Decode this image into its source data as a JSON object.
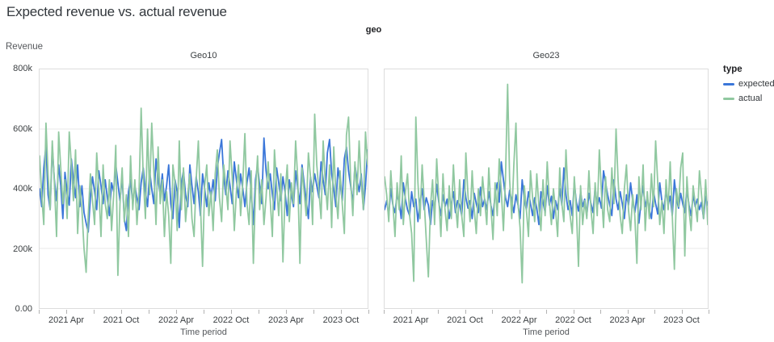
{
  "page_title": "Expected revenue vs. actual revenue",
  "facet_header": "geo",
  "y_axis": {
    "title": "Revenue",
    "ticks": [
      {
        "value": 800000,
        "label": "800k"
      },
      {
        "value": 600000,
        "label": "600k"
      },
      {
        "value": 400000,
        "label": "400k"
      },
      {
        "value": 200000,
        "label": "200k"
      },
      {
        "value": 0,
        "label": "0.00"
      }
    ]
  },
  "x_axis": {
    "title": "Time period",
    "months_span": 36,
    "minor_tick_every_months": 3,
    "labeled_ticks": [
      {
        "month": 3,
        "label": "2021 Apr"
      },
      {
        "month": 9,
        "label": "2021 Oct"
      },
      {
        "month": 15,
        "label": "2022 Apr"
      },
      {
        "month": 21,
        "label": "2022 Oct"
      },
      {
        "month": 27,
        "label": "2023 Apr"
      },
      {
        "month": 33,
        "label": "2023 Oct"
      }
    ]
  },
  "legend": {
    "title": "type",
    "items": [
      {
        "label": "expected",
        "color": "#3a76d9"
      },
      {
        "label": "actual",
        "color": "#90c8a0"
      }
    ]
  },
  "chart_data": {
    "type": "line",
    "title": "Expected revenue vs. actual revenue",
    "facet_field": "geo",
    "xlabel": "Time period",
    "ylabel": "Revenue",
    "x_range": [
      "2021-01",
      "2024-01"
    ],
    "x_interval": "weekly",
    "ylim": [
      0,
      800000
    ],
    "y_units": "values in thousands (k)",
    "grid": true,
    "legend_position": "right",
    "facets": [
      {
        "name": "Geo10",
        "series": [
          {
            "name": "expected",
            "color": "#3a76d9",
            "values_k": [
              400,
              340,
              470,
              545,
              380,
              330,
              540,
              430,
              360,
              480,
              410,
              300,
              455,
              390,
              345,
              500,
              430,
              370,
              480,
              340,
              410,
              320,
              285,
              255,
              370,
              440,
              390,
              330,
              460,
              410,
              350,
              430,
              370,
              310,
              420,
              390,
              480,
              420,
              360,
              440,
              300,
              260,
              390,
              430,
              350,
              410,
              370,
              330,
              420,
              470,
              390,
              340,
              460,
              400,
              350,
              500,
              430,
              380,
              450,
              360,
              410,
              480,
              350,
              300,
              430,
              390,
              270,
              420,
              460,
              380,
              340,
              480,
              410,
              350,
              440,
              390,
              310,
              450,
              400,
              340,
              420,
              370,
              430,
              360,
              470,
              520,
              565,
              440,
              380,
              460,
              410,
              350,
              490,
              430,
              370,
              450,
              400,
              340,
              420,
              470,
              390,
              280,
              430,
              480,
              410,
              350,
              570,
              460,
              400,
              450,
              380,
              330,
              470,
              420,
              360,
              440,
              390,
              310,
              430,
              380,
              340,
              460,
              400,
              350,
              480,
              420,
              360,
              300,
              440,
              390,
              450,
              410,
              370,
              490,
              430,
              380,
              520,
              565,
              450,
              400,
              340,
              470,
              420,
              360,
              500,
              540,
              460,
              410,
              350,
              480,
              430,
              390,
              450,
              330,
              410,
              530
            ]
          },
          {
            "name": "actual",
            "color": "#90c8a0",
            "values_k": [
              510,
              380,
              280,
              620,
              450,
              330,
              560,
              420,
              240,
              590,
              470,
              350,
              430,
              300,
              590,
              480,
              360,
              530,
              250,
              410,
              330,
              200,
              120,
              310,
              450,
              360,
              280,
              520,
              400,
              240,
              480,
              350,
              300,
              430,
              260,
              380,
              545,
              110,
              350,
              470,
              290,
              380,
              240,
              510,
              330,
              430,
              280,
              390,
              670,
              440,
              300,
              600,
              380,
              620,
              460,
              280,
              540,
              350,
              430,
              240,
              390,
              310,
              150,
              480,
              420,
              260,
              560,
              330,
              470,
              290,
              380,
              450,
              300,
              240,
              430,
              560,
              350,
              140,
              410,
              480,
              310,
              390,
              260,
              450,
              530,
              370,
              290,
              480,
              410,
              330,
              560,
              440,
              260,
              390,
              480,
              310,
              420,
              585,
              350,
              280,
              460,
              150,
              390,
              510,
              330,
              430,
              280,
              370,
              490,
              360,
              240,
              530,
              410,
              310,
              450,
              155,
              380,
              480,
              290,
              420,
              350,
              560,
              430,
              150,
              470,
              390,
              310,
              520,
              440,
              280,
              650,
              480,
              390,
              300,
              560,
              420,
              330,
              480,
              270,
              540,
              380,
              300,
              460,
              350,
              250,
              580,
              640,
              430,
              310,
              490,
              380,
              560,
              420,
              330,
              590,
              480
            ]
          }
        ]
      },
      {
        "name": "Geo23",
        "series": [
          {
            "name": "expected",
            "color": "#3a76d9",
            "values_k": [
              330,
              360,
              310,
              400,
              345,
              320,
              380,
              355,
              300,
              420,
              365,
              330,
              310,
              390,
              340,
              365,
              290,
              355,
              400,
              330,
              370,
              345,
              280,
              360,
              330,
              415,
              355,
              310,
              380,
              340,
              365,
              300,
              350,
              390,
              320,
              360,
              345,
              310,
              430,
              370,
              335,
              360,
              300,
              385,
              350,
              320,
              405,
              340,
              365,
              330,
              390,
              345,
              310,
              380,
              420,
              355,
              490,
              430,
              370,
              340,
              395,
              360,
              320,
              380,
              345,
              300,
              430,
              365,
              330,
              390,
              350,
              310,
              370,
              335,
              280,
              390,
              355,
              320,
              410,
              345,
              375,
              300,
              360,
              330,
              400,
              345,
              470,
              380,
              330,
              360,
              310,
              420,
              355,
              325,
              390,
              340,
              365,
              310,
              385,
              350,
              320,
              405,
              340,
              370,
              335,
              460,
              420,
              380,
              345,
              310,
              430,
              365,
              330,
              390,
              350,
              300,
              380,
              345,
              420,
              360,
              320,
              380,
              285,
              355,
              410,
              340,
              370,
              330,
              300,
              390,
              350,
              315,
              420,
              360,
              330,
              395,
              345,
              375,
              310,
              430,
              365,
              335,
              385,
              350,
              320,
              400,
              345,
              310,
              380,
              340,
              365,
              330,
              355,
              300,
              375,
              345
            ]
          },
          {
            "name": "actual",
            "color": "#90c8a0",
            "values_k": [
              440,
              380,
              290,
              460,
              350,
              240,
              420,
              330,
              510,
              280,
              390,
              450,
              310,
              250,
              90,
              640,
              420,
              300,
              480,
              360,
              230,
              105,
              340,
              430,
              280,
              500,
              370,
              240,
              450,
              330,
              260,
              410,
              300,
              480,
              350,
              270,
              430,
              310,
              240,
              520,
              380,
              290,
              460,
              330,
              250,
              400,
              310,
              440,
              360,
              280,
              470,
              340,
              230,
              420,
              310,
              500,
              390,
              260,
              440,
              750,
              430,
              300,
              480,
              620,
              350,
              270,
              85,
              410,
              330,
              240,
              460,
              370,
              290,
              450,
              340,
              260,
              430,
              310,
              490,
              360,
              280,
              400,
              330,
              240,
              470,
              350,
              290,
              530,
              380,
              310,
              250,
              440,
              330,
              140,
              410,
              280,
              360,
              300,
              460,
              330,
              250,
              420,
              310,
              530,
              390,
              270,
              440,
              330,
              290,
              470,
              350,
              600,
              430,
              310,
              250,
              400,
              480,
              330,
              260,
              380,
              310,
              150,
              440,
              330,
              480,
              260,
              390,
              300,
              450,
              340,
              560,
              420,
              280,
              360,
              250,
              430,
              330,
              490,
              310,
              130,
              400,
              340,
              470,
              520,
              175,
              440,
              330,
              260,
              410,
              350,
              290,
              460,
              380,
              300,
              430,
              280
            ]
          }
        ]
      }
    ]
  }
}
